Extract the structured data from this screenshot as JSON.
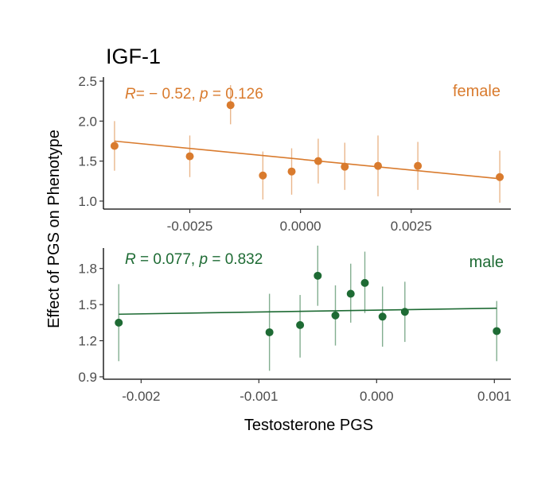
{
  "chart_data": [
    {
      "type": "scatter",
      "title": "IGF-1",
      "group": "female",
      "annotation": {
        "r_label": "R",
        "r_value": "= − 0.52, ",
        "p_label": "p",
        "p_value": " = 0.126"
      },
      "color": "#D97B2E",
      "xlim": [
        -0.00445,
        0.00475
      ],
      "ylim": [
        0.9,
        2.55
      ],
      "xticks": [
        -0.0025,
        0.0,
        0.0025
      ],
      "xtick_labels": [
        "-0.0025",
        "0.0000",
        "0.0025"
      ],
      "yticks": [
        1.0,
        1.5,
        2.0,
        2.5
      ],
      "ytick_labels": [
        "1.0",
        "1.5",
        "2.0",
        "2.5"
      ],
      "points": [
        {
          "x": -0.0042,
          "y": 1.69,
          "lo": 1.38,
          "hi": 2.0
        },
        {
          "x": -0.0025,
          "y": 1.56,
          "lo": 1.3,
          "hi": 1.82
        },
        {
          "x": -0.00158,
          "y": 2.2,
          "lo": 1.96,
          "hi": 2.45
        },
        {
          "x": -0.00085,
          "y": 1.32,
          "lo": 1.02,
          "hi": 1.62
        },
        {
          "x": -0.0002,
          "y": 1.37,
          "lo": 1.08,
          "hi": 1.66
        },
        {
          "x": 0.0004,
          "y": 1.5,
          "lo": 1.22,
          "hi": 1.78
        },
        {
          "x": 0.001,
          "y": 1.43,
          "lo": 1.14,
          "hi": 1.73
        },
        {
          "x": 0.00175,
          "y": 1.44,
          "lo": 1.06,
          "hi": 1.82
        },
        {
          "x": 0.00265,
          "y": 1.44,
          "lo": 1.14,
          "hi": 1.74
        },
        {
          "x": 0.0045,
          "y": 1.3,
          "lo": 0.98,
          "hi": 1.63
        }
      ],
      "fit": {
        "x": [
          -0.0042,
          0.0045
        ],
        "y": [
          1.75,
          1.28
        ]
      }
    },
    {
      "type": "scatter",
      "group": "male",
      "annotation": {
        "r_label": "R",
        "r_value": " = 0.077, ",
        "p_label": "p",
        "p_value": " = 0.832"
      },
      "color": "#1E6B34",
      "xlim": [
        -0.00232,
        0.00114
      ],
      "ylim": [
        0.88,
        1.97
      ],
      "xticks": [
        -0.002,
        -0.001,
        0.0,
        0.001
      ],
      "xtick_labels": [
        "-0.002",
        "-0.001",
        "0.000",
        "0.001"
      ],
      "yticks": [
        0.9,
        1.2,
        1.5,
        1.8
      ],
      "ytick_labels": [
        "0.9",
        "1.2",
        "1.5",
        "1.8"
      ],
      "points": [
        {
          "x": -0.00219,
          "y": 1.35,
          "lo": 1.03,
          "hi": 1.67
        },
        {
          "x": -0.00091,
          "y": 1.27,
          "lo": 0.95,
          "hi": 1.59
        },
        {
          "x": -0.00065,
          "y": 1.33,
          "lo": 1.06,
          "hi": 1.58
        },
        {
          "x": -0.00035,
          "y": 1.41,
          "lo": 1.16,
          "hi": 1.66
        },
        {
          "x": -0.0005,
          "y": 1.74,
          "lo": 1.49,
          "hi": 1.99
        },
        {
          "x": -0.00022,
          "y": 1.59,
          "lo": 1.35,
          "hi": 1.84
        },
        {
          "x": -0.0001,
          "y": 1.68,
          "lo": 1.43,
          "hi": 1.94
        },
        {
          "x": 5e-05,
          "y": 1.4,
          "lo": 1.15,
          "hi": 1.65
        },
        {
          "x": 0.00024,
          "y": 1.44,
          "lo": 1.19,
          "hi": 1.69
        },
        {
          "x": 0.00102,
          "y": 1.28,
          "lo": 1.03,
          "hi": 1.53
        }
      ],
      "fit": {
        "x": [
          -0.00219,
          0.00102
        ],
        "y": [
          1.42,
          1.47
        ]
      }
    }
  ],
  "axis_labels": {
    "ylabel": "Effect of PGS on Phenotype",
    "xlabel": "Testosterone PGS"
  }
}
